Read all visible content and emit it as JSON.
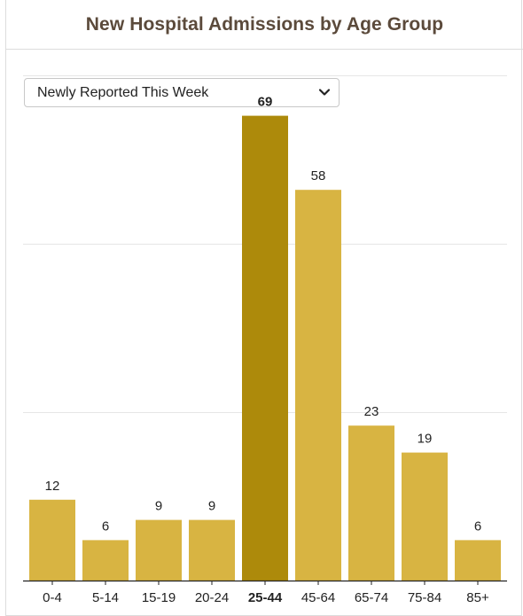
{
  "header": {
    "title": "New Hospital Admissions by Age Group"
  },
  "filter": {
    "selected": "Newly Reported This Week",
    "icon": "chevron-down-icon"
  },
  "colors": {
    "bar": "#d8b442",
    "highlight": "#ad8a0b",
    "grid": "#e6e6e6",
    "axis": "#222222",
    "title": "#5b4a3b"
  },
  "chart_data": {
    "type": "bar",
    "title": "New Hospital Admissions by Age Group",
    "categories": [
      "0-4",
      "5-14",
      "15-19",
      "20-24",
      "25-44",
      "45-64",
      "65-74",
      "75-84",
      "85+"
    ],
    "values": [
      12,
      6,
      9,
      9,
      69,
      58,
      23,
      19,
      6
    ],
    "highlighted_category": "25-44",
    "ylim": [
      0,
      75
    ],
    "gridlines": [
      0,
      25,
      50,
      75
    ],
    "grid": true,
    "data_labels": true,
    "xlabel": "",
    "ylabel": ""
  }
}
